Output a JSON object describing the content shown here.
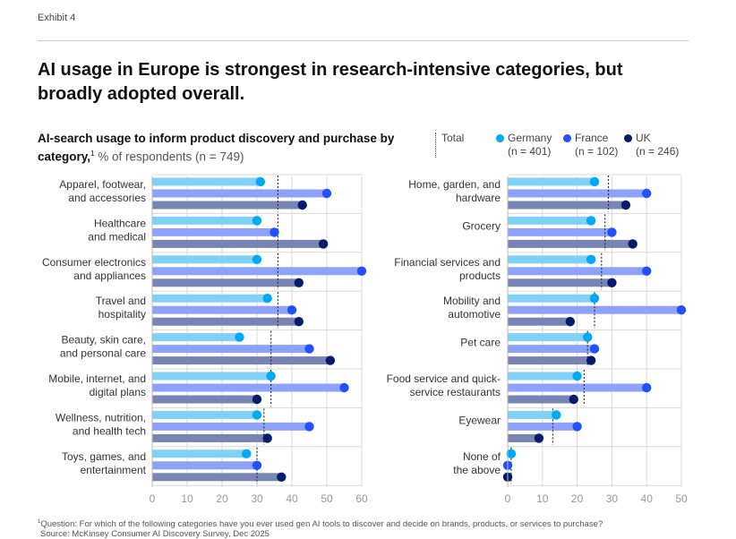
{
  "exhibit_label": "Exhibit 4",
  "headline": "AI usage in Europe is strongest in research-intensive categories, but broadly adopted overall.",
  "subtitle": {
    "bold": "AI-search usage to inform product discovery and purchase by category,",
    "footnote_marker": "1",
    "light": " % of respondents (n = 749)"
  },
  "legend": {
    "total": "Total",
    "series": [
      {
        "name": "Germany",
        "n": "(n = 401)"
      },
      {
        "name": "France",
        "n": "(n = 102)"
      },
      {
        "name": "UK",
        "n": "(n = 246)"
      }
    ]
  },
  "colors": {
    "germany_dot": "#00a9f4",
    "germany_bar": "#7fd1f6",
    "france_dot": "#2251ff",
    "france_bar": "#8fa2f9",
    "uk_dot": "#051c6e",
    "uk_bar": "#7884b3",
    "grid": "#d9d9d9",
    "total_line": "#333333"
  },
  "chart_data": [
    {
      "type": "bar",
      "title": "AI-search usage to inform product discovery and purchase by category (left panel)",
      "xlabel": "% of respondents",
      "xlim": [
        0,
        60
      ],
      "xticks": [
        0,
        10,
        20,
        30,
        40,
        50,
        60
      ],
      "grid": true,
      "legend": "top-right",
      "categories": [
        [
          "Apparel, footwear,",
          "and accessories"
        ],
        [
          "Healthcare",
          "and medical"
        ],
        [
          "Consumer electronics",
          "and appliances"
        ],
        [
          "Travel and",
          "hospitality"
        ],
        [
          "Beauty, skin care,",
          "and personal care"
        ],
        [
          "Mobile, internet, and",
          "digital plans"
        ],
        [
          "Wellness, nutrition,",
          "and health tech"
        ],
        [
          "Toys, games, and",
          "entertainment"
        ]
      ],
      "series": [
        {
          "name": "Germany",
          "values": [
            31,
            30,
            30,
            33,
            25,
            34,
            30,
            27
          ]
        },
        {
          "name": "France",
          "values": [
            50,
            35,
            60,
            40,
            45,
            55,
            45,
            30
          ]
        },
        {
          "name": "UK",
          "values": [
            43,
            49,
            42,
            42,
            51,
            30,
            33,
            37
          ]
        }
      ],
      "total": [
        36,
        36,
        36,
        36,
        34,
        34,
        32,
        30
      ]
    },
    {
      "type": "bar",
      "title": "AI-search usage to inform product discovery and purchase by category (right panel)",
      "xlabel": "% of respondents",
      "xlim": [
        0,
        50
      ],
      "xticks": [
        0,
        10,
        20,
        30,
        40,
        50
      ],
      "grid": true,
      "legend": "top-right",
      "categories": [
        [
          "Home, garden, and",
          "hardware"
        ],
        [
          "Grocery"
        ],
        [
          "Financial services and",
          "products"
        ],
        [
          "Mobility and",
          "automotive"
        ],
        [
          "Pet care"
        ],
        [
          "Food service and quick-",
          "service restaurants"
        ],
        [
          "Eyewear"
        ],
        [
          "None of",
          "the above"
        ]
      ],
      "series": [
        {
          "name": "Germany",
          "values": [
            25,
            24,
            24,
            25,
            23,
            20,
            14,
            1
          ]
        },
        {
          "name": "France",
          "values": [
            40,
            30,
            40,
            50,
            25,
            40,
            20,
            0
          ]
        },
        {
          "name": "UK",
          "values": [
            34,
            36,
            30,
            18,
            24,
            19,
            9,
            0
          ]
        }
      ],
      "total": [
        29,
        28,
        27,
        25,
        23,
        22,
        13,
        1
      ]
    }
  ],
  "footnote": {
    "marker": "1",
    "question": "Question: For which of the following categories have you ever used gen AI tools to discover and decide on brands, products, or services to purchase?",
    "source": "Source: McKinsey Consumer AI Discovery Survey, Dec 2025"
  }
}
